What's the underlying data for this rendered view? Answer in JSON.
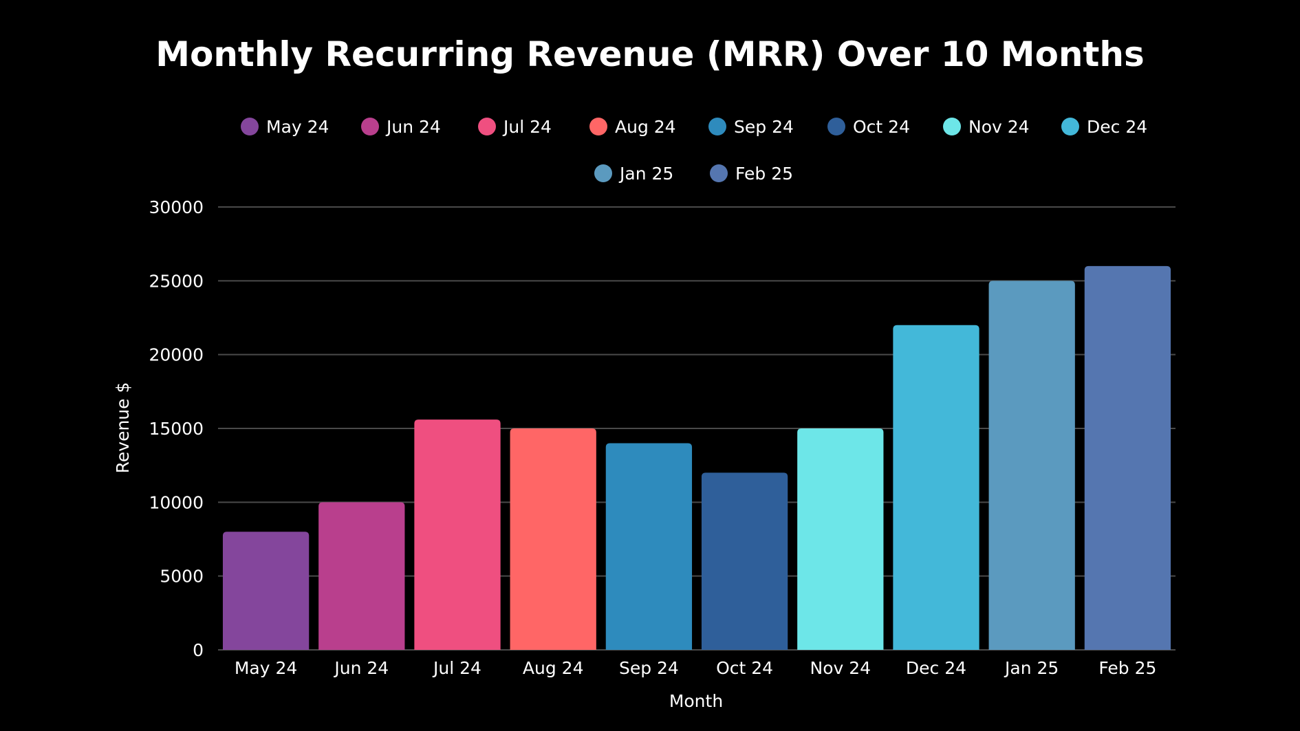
{
  "chart_data": {
    "type": "bar",
    "title": "Monthly Recurring Revenue (MRR) Over 10 Months",
    "xlabel": "Month",
    "ylabel": "Revenue $",
    "ylim": [
      0,
      30000
    ],
    "yticks": [
      0,
      5000,
      10000,
      15000,
      20000,
      25000,
      30000
    ],
    "grid": true,
    "legend_position": "top",
    "categories": [
      "May 24",
      "Jun 24",
      "Jul 24",
      "Aug 24",
      "Sep 24",
      "Oct 24",
      "Nov 24",
      "Dec 24",
      "Jan 25",
      "Feb 25"
    ],
    "values": [
      8000,
      10000,
      15600,
      15000,
      14000,
      12000,
      15000,
      22000,
      25000,
      26000
    ],
    "colors": [
      "#84469c",
      "#b93f8d",
      "#ef4f80",
      "#ff6666",
      "#2e8bbd",
      "#2f5f9a",
      "#6de6e8",
      "#43b8d9",
      "#5b9abf",
      "#5576b0"
    ]
  }
}
